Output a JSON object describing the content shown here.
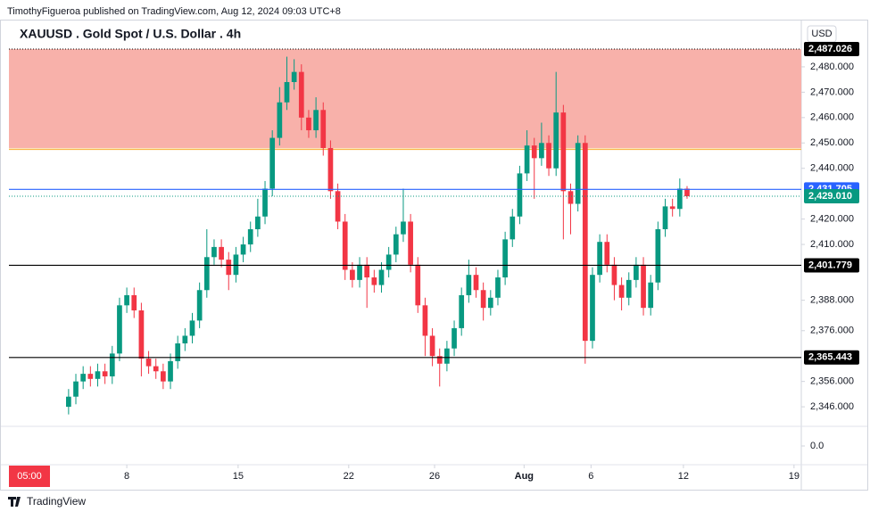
{
  "header": {
    "byline": "TimothyFigueroa published on TradingView.com, Aug 12, 2024 09:03 UTC+8",
    "brand": "TradingView"
  },
  "chart_data": {
    "type": "candlestick",
    "title": "XAUUSD . Gold Spot / U.S. Dollar . 4h",
    "currency": "USD",
    "time_label": "05:00",
    "up_color": "#089981",
    "down_color": "#f23645",
    "ylim": [
      2338.3,
      2495.8
    ],
    "yticks": [
      {
        "value": 2346,
        "label": "2,346.000"
      },
      {
        "value": 2356,
        "label": "2,356.000"
      },
      {
        "value": 2376,
        "label": "2,376.000"
      },
      {
        "value": 2388,
        "label": "2,388.000"
      },
      {
        "value": 2410,
        "label": "2,410.000"
      },
      {
        "value": 2420,
        "label": "2,420.000"
      },
      {
        "value": 2440,
        "label": "2,440.000"
      },
      {
        "value": 2450,
        "label": "2,450.000"
      },
      {
        "value": 2460,
        "label": "2,460.000"
      },
      {
        "value": 2470,
        "label": "2,470.000"
      },
      {
        "value": 2480,
        "label": "2,480.000"
      }
    ],
    "lower_pane_ticks": [
      {
        "value": 0,
        "label": "0.0"
      }
    ],
    "xlim": [
      -8.2,
      100.7
    ],
    "xticks": [
      {
        "value": 8,
        "label": "8"
      },
      {
        "value": 23.3,
        "label": "15"
      },
      {
        "value": 38.5,
        "label": "22"
      },
      {
        "value": 50.3,
        "label": "26"
      },
      {
        "value": 62.6,
        "label": "Aug"
      },
      {
        "value": 71.8,
        "label": "6"
      },
      {
        "value": 84.5,
        "label": "12"
      },
      {
        "value": 99.7,
        "label": "19"
      }
    ],
    "zone": {
      "from": 2448,
      "to": 2487.026,
      "color": "#f8b1aa"
    },
    "orange_line": {
      "value": 2447.5,
      "color": "#f7b84b"
    },
    "levels": [
      {
        "value": 2487.026,
        "label": "2,487.026",
        "color": "#000000",
        "style": "dotted"
      },
      {
        "value": 2431.705,
        "label": "2,431.705",
        "color": "#2962ff",
        "style": "solid"
      },
      {
        "value": 2429.01,
        "label": "2,429.010",
        "color": "#089981",
        "style": "dotted"
      },
      {
        "value": 2401.779,
        "label": "2,401.779",
        "color": "#000000",
        "style": "solid"
      },
      {
        "value": 2365.443,
        "label": "2,365.443",
        "color": "#000000",
        "style": "solid"
      }
    ],
    "open": [
      2346,
      2350,
      2356,
      2359,
      2357,
      2360,
      2358,
      2367,
      2386,
      2390,
      2384,
      2365,
      2362,
      2360,
      2356,
      2364,
      2371,
      2374,
      2380,
      2392,
      2405,
      2409,
      2404,
      2398,
      2406,
      2410,
      2416,
      2421,
      2432,
      2452,
      2466,
      2474,
      2478,
      2460,
      2455,
      2463,
      2448,
      2431,
      2419,
      2400,
      2396,
      2402,
      2397,
      2394,
      2400,
      2406,
      2414,
      2419,
      2402,
      2386,
      2374,
      2366,
      2363,
      2369,
      2377,
      2390,
      2398,
      2392,
      2385,
      2389,
      2397,
      2412,
      2421,
      2438,
      2449,
      2444,
      2450,
      2440,
      2462,
      2431,
      2426,
      2450,
      2372,
      2398,
      2411,
      2402,
      2394,
      2389,
      2396,
      2402,
      2385,
      2395,
      2416,
      2425,
      2424,
      2432
    ],
    "high": [
      2353,
      2359,
      2362,
      2362,
      2363,
      2363,
      2370,
      2389,
      2393,
      2393,
      2387,
      2368,
      2365,
      2363,
      2367,
      2374,
      2377,
      2383,
      2395,
      2416,
      2412,
      2412,
      2407,
      2409,
      2413,
      2419,
      2428,
      2435,
      2455,
      2472,
      2484,
      2483,
      2481,
      2463,
      2468,
      2466,
      2451,
      2434,
      2422,
      2403,
      2405,
      2405,
      2400,
      2403,
      2409,
      2417,
      2432,
      2422,
      2405,
      2389,
      2377,
      2369,
      2372,
      2380,
      2393,
      2404,
      2401,
      2395,
      2392,
      2400,
      2415,
      2424,
      2441,
      2455,
      2452,
      2458,
      2453,
      2478,
      2465,
      2434,
      2453,
      2453,
      2401,
      2414,
      2414,
      2405,
      2397,
      2399,
      2405,
      2405,
      2398,
      2419,
      2428,
      2428,
      2436,
      2433
    ],
    "low": [
      2343,
      2347,
      2353,
      2354,
      2354,
      2355,
      2355,
      2364,
      2383,
      2381,
      2358,
      2359,
      2357,
      2353,
      2353,
      2361,
      2368,
      2371,
      2377,
      2389,
      2402,
      2401,
      2392,
      2395,
      2403,
      2407,
      2413,
      2418,
      2429,
      2449,
      2463,
      2471,
      2455,
      2452,
      2452,
      2445,
      2428,
      2416,
      2396,
      2393,
      2393,
      2385,
      2391,
      2391,
      2397,
      2403,
      2411,
      2399,
      2383,
      2366,
      2362,
      2354,
      2360,
      2366,
      2374,
      2387,
      2389,
      2380,
      2382,
      2386,
      2394,
      2409,
      2418,
      2435,
      2428,
      2441,
      2437,
      2437,
      2412,
      2414,
      2423,
      2363,
      2369,
      2395,
      2399,
      2388,
      2384,
      2386,
      2393,
      2382,
      2382,
      2392,
      2413,
      2421,
      2421,
      2428
    ],
    "close": [
      2350,
      2356,
      2359,
      2357,
      2360,
      2358,
      2367,
      2386,
      2390,
      2384,
      2365,
      2362,
      2360,
      2356,
      2364,
      2371,
      2374,
      2380,
      2392,
      2405,
      2409,
      2404,
      2398,
      2406,
      2410,
      2416,
      2421,
      2432,
      2452,
      2466,
      2474,
      2478,
      2460,
      2455,
      2463,
      2448,
      2431,
      2419,
      2400,
      2396,
      2402,
      2397,
      2394,
      2400,
      2406,
      2414,
      2419,
      2402,
      2386,
      2374,
      2366,
      2363,
      2369,
      2377,
      2390,
      2398,
      2392,
      2385,
      2389,
      2397,
      2412,
      2421,
      2438,
      2449,
      2444,
      2450,
      2440,
      2462,
      2431,
      2426,
      2450,
      2372,
      2398,
      2411,
      2402,
      2394,
      2389,
      2396,
      2402,
      2385,
      2395,
      2416,
      2425,
      2424,
      2432,
      2429.01
    ]
  }
}
